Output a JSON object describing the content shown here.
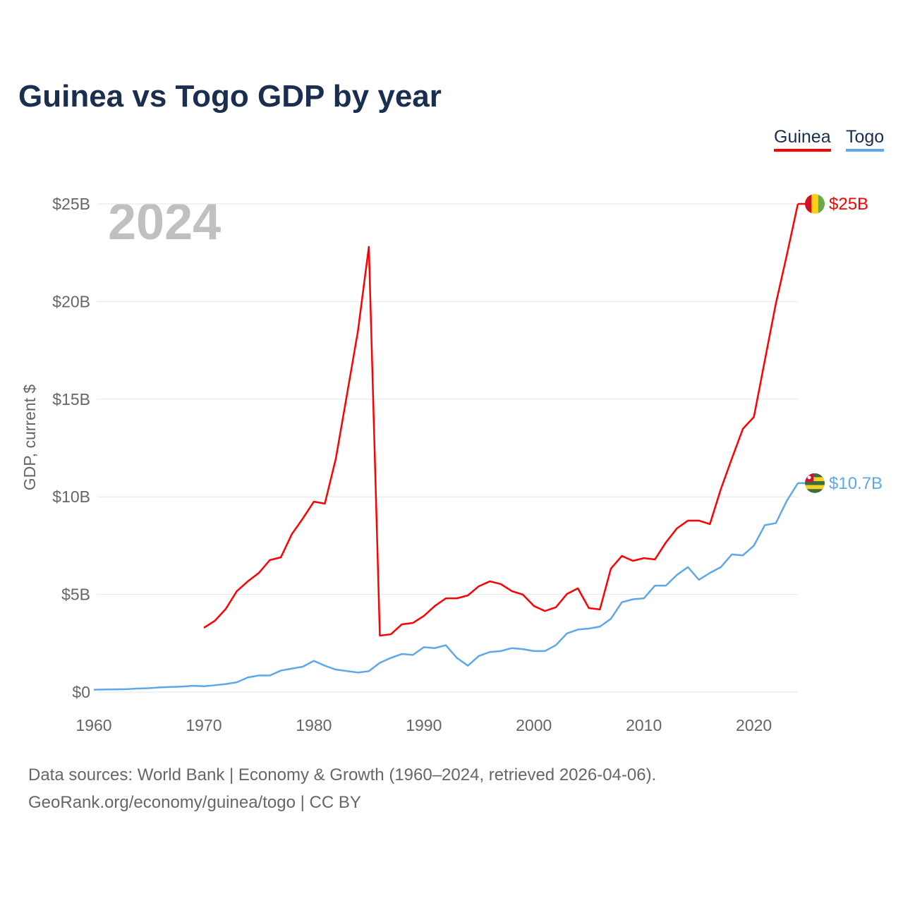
{
  "title": "Guinea vs Togo GDP by year",
  "year_label": "2024",
  "source_line1": "Data sources: World Bank | Economy & Growth (1960–2024, retrieved 2026-04-06).",
  "source_line2": "GeoRank.org/economy/guinea/togo | CC BY",
  "chart_data": {
    "type": "line",
    "title": "Guinea vs Togo GDP by year",
    "xlabel": "",
    "ylabel": "GDP, current $",
    "xlim": [
      1960,
      2024
    ],
    "ylim": [
      0,
      25
    ],
    "x_ticks": [
      "1960",
      "1970",
      "1980",
      "1990",
      "2000",
      "2010",
      "2020"
    ],
    "y_ticks": [
      "$0",
      "$5B",
      "$10B",
      "$15B",
      "$20B",
      "$25B"
    ],
    "grid": true,
    "legend_position": "top-right",
    "series": [
      {
        "name": "Guinea",
        "color": "#ff0000",
        "end_label": "$25B",
        "start_year": 1970,
        "values": [
          3.29,
          3.65,
          4.26,
          5.17,
          5.67,
          6.1,
          6.76,
          6.9,
          8.09,
          8.89,
          9.75,
          9.65,
          11.96,
          15.2,
          18.46,
          22.8,
          2.89,
          2.96,
          3.47,
          3.54,
          3.9,
          4.41,
          4.8,
          4.8,
          4.95,
          5.42,
          5.67,
          5.53,
          5.17,
          4.99,
          4.41,
          4.15,
          4.34,
          5.02,
          5.31,
          4.3,
          4.23,
          6.32,
          6.97,
          6.72,
          6.86,
          6.79,
          7.66,
          8.38,
          8.78,
          8.78,
          8.6,
          10.4,
          11.96,
          13.48,
          14.09,
          17.0,
          19.9,
          22.4,
          25.0
        ]
      },
      {
        "name": "Togo",
        "color": "#5ea8ea",
        "end_label": "$10.7B",
        "start_year": 1960,
        "values": [
          0.12,
          0.13,
          0.14,
          0.15,
          0.18,
          0.2,
          0.24,
          0.26,
          0.28,
          0.32,
          0.3,
          0.35,
          0.41,
          0.5,
          0.75,
          0.85,
          0.85,
          1.1,
          1.2,
          1.3,
          1.6,
          1.35,
          1.15,
          1.08,
          1.0,
          1.07,
          1.5,
          1.75,
          1.95,
          1.9,
          2.3,
          2.25,
          2.4,
          1.75,
          1.35,
          1.85,
          2.05,
          2.1,
          2.25,
          2.2,
          2.1,
          2.1,
          2.4,
          3.0,
          3.2,
          3.25,
          3.35,
          3.75,
          4.6,
          4.75,
          4.8,
          5.45,
          5.45,
          6.0,
          6.4,
          5.75,
          6.1,
          6.4,
          7.05,
          7.0,
          7.5,
          8.55,
          8.65,
          9.8,
          10.7
        ]
      }
    ]
  }
}
